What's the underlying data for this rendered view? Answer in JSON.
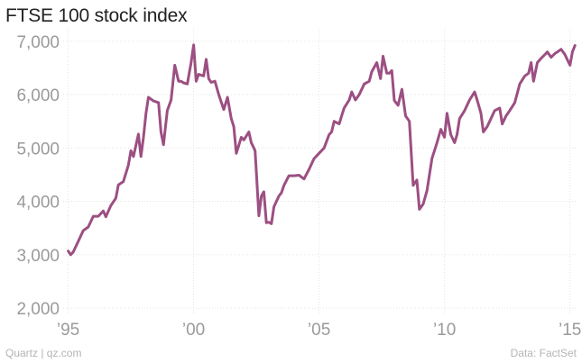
{
  "chart_data": {
    "type": "line",
    "title": "FTSE 100 stock index",
    "xlabel": "",
    "ylabel": "",
    "xlim": [
      1994.8,
      2015.3
    ],
    "ylim": [
      1900,
      7300
    ],
    "grid": true,
    "y_ticks": [
      {
        "value": 2000,
        "label": "2,000"
      },
      {
        "value": 3000,
        "label": "3,000"
      },
      {
        "value": 4000,
        "label": "4,000"
      },
      {
        "value": 5000,
        "label": "5,000"
      },
      {
        "value": 6000,
        "label": "6,000"
      },
      {
        "value": 7000,
        "label": "7,000"
      }
    ],
    "x_ticks": [
      {
        "value": 1995,
        "label": "’95"
      },
      {
        "value": 2000,
        "label": "’00"
      },
      {
        "value": 2005,
        "label": "’05"
      },
      {
        "value": 2010,
        "label": "’10"
      },
      {
        "value": 2015,
        "label": "’15"
      }
    ],
    "series": [
      {
        "color": "#9c4f82",
        "x": [
          1995.0,
          1995.1,
          1995.2,
          1995.4,
          1995.6,
          1995.8,
          1996.0,
          1996.2,
          1996.4,
          1996.5,
          1996.7,
          1996.9,
          1997.0,
          1997.2,
          1997.4,
          1997.5,
          1997.6,
          1997.8,
          1997.9,
          1998.0,
          1998.1,
          1998.2,
          1998.4,
          1998.6,
          1998.7,
          1998.8,
          1998.95,
          1999.1,
          1999.25,
          1999.4,
          1999.5,
          1999.6,
          1999.75,
          1999.9,
          2000.0,
          2000.1,
          2000.2,
          2000.4,
          2000.5,
          2000.6,
          2000.7,
          2000.85,
          2001.0,
          2001.2,
          2001.35,
          2001.5,
          2001.6,
          2001.7,
          2001.9,
          2002.0,
          2002.2,
          2002.3,
          2002.45,
          2002.5,
          2002.6,
          2002.7,
          2002.8,
          2002.9,
          2003.0,
          2003.1,
          2003.2,
          2003.4,
          2003.5,
          2003.6,
          2003.8,
          2004.0,
          2004.2,
          2004.4,
          2004.6,
          2004.8,
          2005.0,
          2005.2,
          2005.4,
          2005.5,
          2005.6,
          2005.8,
          2005.9,
          2006.0,
          2006.2,
          2006.3,
          2006.45,
          2006.6,
          2006.8,
          2007.0,
          2007.1,
          2007.3,
          2007.45,
          2007.55,
          2007.7,
          2007.8,
          2007.9,
          2008.0,
          2008.15,
          2008.3,
          2008.45,
          2008.6,
          2008.75,
          2008.9,
          2009.0,
          2009.15,
          2009.3,
          2009.5,
          2009.7,
          2009.85,
          2010.0,
          2010.1,
          2010.25,
          2010.4,
          2010.5,
          2010.6,
          2010.8,
          2011.0,
          2011.2,
          2011.3,
          2011.45,
          2011.55,
          2011.7,
          2011.8,
          2012.0,
          2012.2,
          2012.3,
          2012.45,
          2012.6,
          2012.8,
          2013.0,
          2013.2,
          2013.35,
          2013.45,
          2013.55,
          2013.7,
          2013.85,
          2014.0,
          2014.1,
          2014.25,
          2014.4,
          2014.5,
          2014.65,
          2014.8,
          2014.95,
          2015.0,
          2015.1,
          2015.2
        ],
        "values": [
          3070,
          3000,
          3050,
          3250,
          3450,
          3520,
          3720,
          3720,
          3820,
          3710,
          3920,
          4060,
          4310,
          4370,
          4680,
          4950,
          4840,
          5260,
          4840,
          5200,
          5650,
          5950,
          5880,
          5850,
          5300,
          5060,
          5700,
          5900,
          6550,
          6250,
          6250,
          6220,
          6200,
          6600,
          6930,
          6250,
          6380,
          6350,
          6660,
          6300,
          6230,
          6250,
          6000,
          5720,
          5950,
          5550,
          5400,
          4900,
          5200,
          5150,
          5300,
          5100,
          4950,
          4550,
          3730,
          4100,
          4180,
          3600,
          3610,
          3580,
          3900,
          4100,
          4160,
          4300,
          4480,
          4480,
          4490,
          4420,
          4600,
          4800,
          4900,
          5000,
          5250,
          5300,
          5500,
          5450,
          5600,
          5750,
          5900,
          6050,
          5900,
          6000,
          6200,
          6250,
          6430,
          6600,
          6300,
          6720,
          6400,
          6400,
          6450,
          5890,
          5800,
          6100,
          5600,
          5500,
          4300,
          4400,
          3850,
          3950,
          4200,
          4800,
          5100,
          5350,
          5200,
          5650,
          5250,
          5100,
          5250,
          5550,
          5700,
          5900,
          6050,
          5900,
          5650,
          5300,
          5400,
          5500,
          5700,
          5750,
          5450,
          5600,
          5700,
          5850,
          6200,
          6350,
          6400,
          6600,
          6250,
          6600,
          6680,
          6750,
          6800,
          6700,
          6770,
          6800,
          6850,
          6750,
          6600,
          6550,
          6800,
          6920
        ]
      }
    ]
  },
  "footer": {
    "source_left": "Quartz | qz.com",
    "source_right": "Data: FactSet"
  }
}
